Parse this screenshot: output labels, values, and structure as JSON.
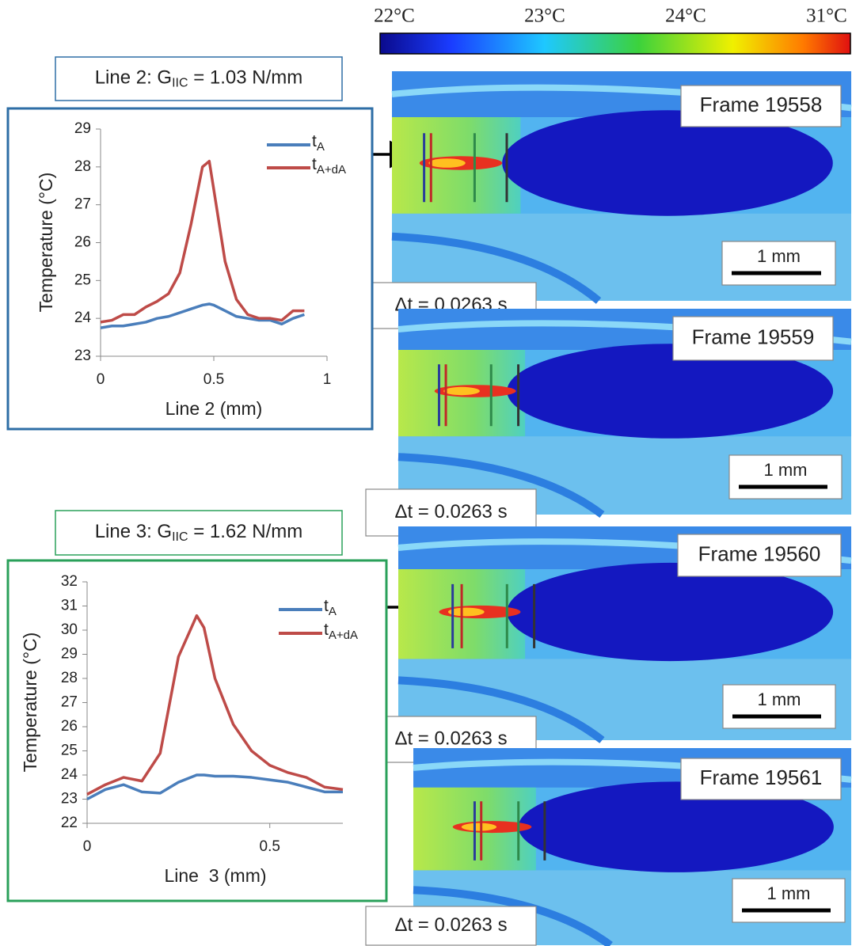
{
  "chart_data": [
    {
      "type": "line",
      "title": "Line 2: G",
      "title_sub": "IIC",
      "title_end": " = 1.03 N/mm",
      "xlabel": "Line 2 (mm)",
      "ylabel": "Temperature (°C)",
      "x": [
        0,
        0.05,
        0.1,
        0.15,
        0.2,
        0.25,
        0.3,
        0.35,
        0.4,
        0.45,
        0.48,
        0.5,
        0.55,
        0.6,
        0.65,
        0.7,
        0.75,
        0.8,
        0.85,
        0.9
      ],
      "series": [
        {
          "name": "t",
          "name_sub": "A",
          "color": "#4a7ebb",
          "values": [
            23.75,
            23.8,
            23.8,
            23.85,
            23.9,
            24.0,
            24.05,
            24.15,
            24.25,
            24.35,
            24.38,
            24.35,
            24.2,
            24.05,
            24.0,
            23.95,
            23.95,
            23.85,
            24.0,
            24.1
          ]
        },
        {
          "name": "t",
          "name_sub": "A+dA",
          "color": "#be4b48",
          "values": [
            23.9,
            23.95,
            24.1,
            24.1,
            24.3,
            24.45,
            24.65,
            25.2,
            26.5,
            28.0,
            28.15,
            27.4,
            25.5,
            24.5,
            24.1,
            24.0,
            24.0,
            23.95,
            24.2,
            24.2
          ]
        }
      ],
      "xlim": [
        0,
        1
      ],
      "xticks": [
        0,
        0.5,
        1
      ],
      "ylim": [
        23,
        29
      ],
      "yticks": [
        23,
        24,
        25,
        26,
        27,
        28,
        29
      ],
      "border_color": "#2e6ea6"
    },
    {
      "type": "line",
      "title": "Line 3: G",
      "title_sub": "IIC",
      "title_end": " = 1.62 N/mm",
      "xlabel": "Line  3 (mm)",
      "ylabel": "Temperature (°C)",
      "x": [
        0,
        0.05,
        0.1,
        0.15,
        0.2,
        0.25,
        0.3,
        0.32,
        0.35,
        0.4,
        0.45,
        0.5,
        0.55,
        0.6,
        0.65,
        0.7
      ],
      "series": [
        {
          "name": "t",
          "name_sub": "A",
          "color": "#4a7ebb",
          "values": [
            23.0,
            23.4,
            23.6,
            23.3,
            23.25,
            23.7,
            24.0,
            24.0,
            23.95,
            23.95,
            23.9,
            23.8,
            23.7,
            23.5,
            23.3,
            23.3
          ]
        },
        {
          "name": "t",
          "name_sub": "A+dA",
          "color": "#be4b48",
          "values": [
            23.2,
            23.6,
            23.9,
            23.75,
            24.9,
            28.9,
            30.6,
            30.1,
            28.0,
            26.1,
            25.0,
            24.4,
            24.1,
            23.9,
            23.5,
            23.4
          ]
        }
      ],
      "xlim": [
        0,
        0.7
      ],
      "xticks": [
        0,
        0.5
      ],
      "ylim": [
        22,
        32
      ],
      "yticks": [
        22,
        23,
        24,
        25,
        26,
        27,
        28,
        29,
        30,
        31,
        32
      ],
      "border_color": "#2aa05a"
    }
  ],
  "colorbar": {
    "labels": [
      "22°C",
      "23°C",
      "24°C",
      "31°C"
    ]
  },
  "frames": [
    {
      "label": "Frame 19558",
      "dt": "Δt = 0.0263 s",
      "scale": "1 mm"
    },
    {
      "label": "Frame 19559",
      "dt": "Δt = 0.0263 s",
      "scale": "1 mm"
    },
    {
      "label": "Frame 19560",
      "dt": "Δt = 0.0263 s",
      "scale": "1 mm"
    },
    {
      "label": "Frame 19561",
      "dt": "Δt = 0.0263 s",
      "scale": "1 mm"
    }
  ]
}
